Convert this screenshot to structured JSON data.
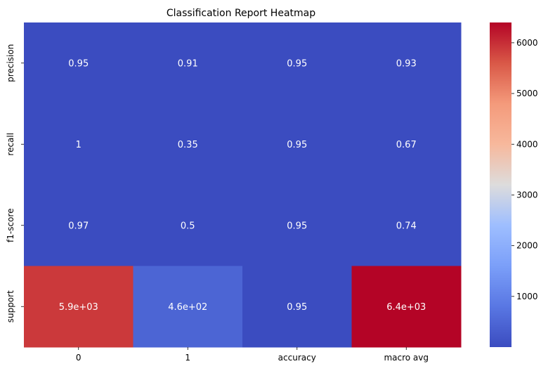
{
  "chart_data": {
    "type": "heatmap",
    "title": "Classification Report Heatmap",
    "xlabel": "",
    "ylabel": "",
    "x_categories": [
      "0",
      "1",
      "accuracy",
      "macro avg"
    ],
    "y_categories": [
      "precision",
      "recall",
      "f1-score",
      "support"
    ],
    "values": [
      [
        0.95,
        0.91,
        0.95,
        0.93
      ],
      [
        1.0,
        0.35,
        0.95,
        0.67
      ],
      [
        0.97,
        0.5,
        0.95,
        0.74
      ],
      [
        5900,
        460,
        0.95,
        6400
      ]
    ],
    "annotations": [
      [
        "0.95",
        "0.91",
        "0.95",
        "0.93"
      ],
      [
        "1",
        "0.35",
        "0.95",
        "0.67"
      ],
      [
        "0.97",
        "0.5",
        "0.95",
        "0.74"
      ],
      [
        "5.9e+03",
        "4.6e+02",
        "0.95",
        "6.4e+03"
      ]
    ],
    "colormap": "coolwarm",
    "colorbar": {
      "min": 0.35,
      "max": 6400,
      "ticks": [
        1000,
        2000,
        3000,
        4000,
        5000,
        6000
      ],
      "tick_labels": [
        "1000",
        "2000",
        "3000",
        "4000",
        "5000",
        "6000"
      ]
    },
    "grid": false
  }
}
